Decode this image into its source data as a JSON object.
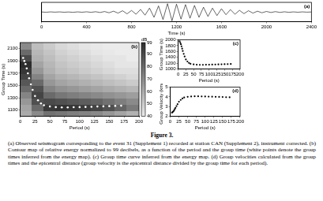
{
  "chart_data": [
    {
      "type": "line",
      "xlabel": "Time (s)",
      "annotations": [
        "(a)"
      ],
      "color": "#000000",
      "grid": false,
      "tick_labels": "x",
      "xlim": [
        0,
        2400
      ],
      "xticks": [
        0,
        400,
        800,
        1200,
        1600,
        2000,
        2400
      ],
      "ylim": [
        -1.1,
        1.1
      ],
      "x": [
        0,
        40,
        80,
        120,
        160,
        200,
        240,
        280,
        320,
        360,
        400,
        440,
        480,
        520,
        560,
        600,
        640,
        680,
        720,
        760,
        800,
        840,
        880,
        920,
        960,
        1000,
        1040,
        1080,
        1120,
        1160,
        1200,
        1240,
        1280,
        1320,
        1360,
        1400,
        1440,
        1480,
        1520,
        1560,
        1600,
        1640,
        1680,
        1720,
        1760,
        1800,
        1840,
        1880,
        1920,
        1960,
        2000,
        2040,
        2080,
        2120,
        2160,
        2200,
        2240,
        2280,
        2320,
        2360,
        2400
      ],
      "values": [
        0.01,
        -0.02,
        0.02,
        -0.01,
        0.02,
        -0.02,
        0.01,
        -0.03,
        0.02,
        -0.02,
        0.03,
        -0.03,
        0.04,
        -0.05,
        0.06,
        -0.08,
        0.1,
        -0.12,
        0.15,
        -0.2,
        0.18,
        -0.25,
        0.3,
        -0.35,
        0.45,
        -0.6,
        0.7,
        -0.85,
        0.95,
        -1.0,
        0.9,
        -0.8,
        0.85,
        -0.7,
        0.75,
        -0.6,
        0.55,
        -0.5,
        0.45,
        -0.4,
        0.38,
        -0.3,
        0.28,
        -0.25,
        0.2,
        -0.18,
        0.15,
        -0.12,
        0.1,
        -0.08,
        0.07,
        -0.05,
        0.05,
        -0.04,
        0.03,
        -0.03,
        0.02,
        -0.02,
        0.02,
        -0.01,
        0.01
      ]
    },
    {
      "type": "heatmap",
      "xlabel": "Period (s)",
      "ylabel": "Group Time (s)",
      "annotations": [
        "(b)"
      ],
      "grid": false,
      "xlim": [
        0,
        200
      ],
      "xticks": [
        0,
        25,
        50,
        75,
        100,
        125,
        150,
        175,
        200
      ],
      "ylim": [
        1000,
        2200
      ],
      "yticks": [
        1100,
        1300,
        1500,
        1700,
        1900,
        2100
      ],
      "color": "#ffffff",
      "marker": "circle",
      "x": [
        5,
        7,
        9,
        11,
        13,
        15,
        18,
        21,
        25,
        30,
        35,
        40,
        50,
        60,
        70,
        80,
        90,
        100,
        110,
        120,
        130,
        140,
        150,
        160,
        170
      ],
      "values": [
        1950,
        1900,
        1850,
        1780,
        1700,
        1620,
        1520,
        1430,
        1330,
        1260,
        1210,
        1180,
        1160,
        1150,
        1145,
        1145,
        1148,
        1150,
        1153,
        1156,
        1160,
        1163,
        1166,
        1170,
        1173
      ],
      "cells": {
        "x": [
          10,
          30,
          50,
          70,
          90,
          110,
          130,
          150,
          170,
          190
        ],
        "y": [
          1050,
          1150,
          1250,
          1350,
          1450,
          1550,
          1650,
          1750,
          1850,
          1950,
          2050,
          2150
        ],
        "values": [
          [
            60,
            70,
            78,
            76,
            74,
            72,
            70,
            66,
            62,
            58
          ],
          [
            62,
            80,
            95,
            97,
            96,
            94,
            92,
            88,
            82,
            75
          ],
          [
            66,
            88,
            90,
            88,
            86,
            84,
            82,
            78,
            74,
            70
          ],
          [
            72,
            92,
            80,
            76,
            74,
            72,
            70,
            68,
            66,
            64
          ],
          [
            80,
            88,
            72,
            68,
            66,
            64,
            62,
            60,
            58,
            56
          ],
          [
            86,
            80,
            66,
            62,
            60,
            58,
            56,
            54,
            52,
            50
          ],
          [
            92,
            72,
            62,
            58,
            56,
            54,
            52,
            50,
            48,
            46
          ],
          [
            96,
            66,
            58,
            54,
            52,
            50,
            48,
            46,
            44,
            44
          ],
          [
            99,
            62,
            56,
            52,
            50,
            48,
            46,
            44,
            42,
            42
          ],
          [
            90,
            58,
            54,
            50,
            48,
            46,
            44,
            42,
            42,
            40
          ],
          [
            80,
            56,
            52,
            48,
            46,
            44,
            42,
            41,
            40,
            40
          ],
          [
            70,
            54,
            50,
            46,
            44,
            42,
            41,
            40,
            40,
            40
          ]
        ]
      },
      "colorbar": {
        "label": "dB",
        "range": [
          40,
          99
        ],
        "ticks": [
          99,
          90,
          80,
          70,
          60,
          50,
          40
        ]
      }
    },
    {
      "type": "scatter",
      "xlabel": "Period (s)",
      "ylabel": "Group Time (s)",
      "annotations": [
        "(c)"
      ],
      "grid": false,
      "color": "#000000",
      "marker": "circle",
      "xlim": [
        0,
        200
      ],
      "xticks": [
        0,
        25,
        50,
        75,
        100,
        125,
        150,
        175,
        200
      ],
      "ylim": [
        1000,
        2000
      ],
      "yticks": [
        1000,
        1200,
        1400,
        1600,
        1800,
        2000
      ],
      "x": [
        5,
        7,
        9,
        11,
        13,
        15,
        18,
        21,
        25,
        30,
        35,
        40,
        50,
        60,
        70,
        80,
        90,
        100,
        110,
        120,
        130,
        140,
        150,
        160,
        170
      ],
      "values": [
        1950,
        1900,
        1850,
        1780,
        1700,
        1620,
        1520,
        1430,
        1330,
        1260,
        1210,
        1180,
        1160,
        1150,
        1145,
        1145,
        1148,
        1150,
        1153,
        1156,
        1160,
        1163,
        1166,
        1170,
        1173
      ]
    },
    {
      "type": "scatter",
      "xlabel": "Period (s)",
      "ylabel": "Group Velocity (km/s)",
      "annotations": [
        "(d)"
      ],
      "grid": false,
      "color": "#000000",
      "marker": "circle",
      "xlim": [
        0,
        200
      ],
      "xticks": [
        0,
        25,
        50,
        75,
        100,
        125,
        150,
        175,
        200
      ],
      "ylim": [
        2,
        5
      ],
      "yticks": [
        2,
        3,
        4,
        5
      ],
      "x": [
        5,
        7,
        9,
        11,
        13,
        15,
        18,
        21,
        25,
        30,
        35,
        40,
        50,
        60,
        70,
        80,
        90,
        100,
        110,
        120,
        130,
        140,
        150,
        160,
        170
      ],
      "values": [
        2.38,
        2.45,
        2.51,
        2.61,
        2.74,
        2.87,
        3.06,
        3.25,
        3.5,
        3.69,
        3.84,
        3.94,
        4.01,
        4.04,
        4.06,
        4.06,
        4.05,
        4.04,
        4.03,
        4.02,
        4.01,
        4.0,
        3.99,
        3.97,
        3.96
      ]
    }
  ],
  "caption": {
    "label": "Figure 3.",
    "text": "(a) Observed seismogram corresponding to the event 31 (Supplement 1) recorded at station CAN (Supplement 2), instrument corrected. (b) Contour map of relative energy normalized to 99 decibels, as a function of the period and the group time (white points denote the group times inferred from the energy map). (c) Group time curve inferred from the energy map. (d) Group velocities calculated from the group times and the epicentral distance (group velocity is the epicentral distance divided by the group time for each period)."
  }
}
